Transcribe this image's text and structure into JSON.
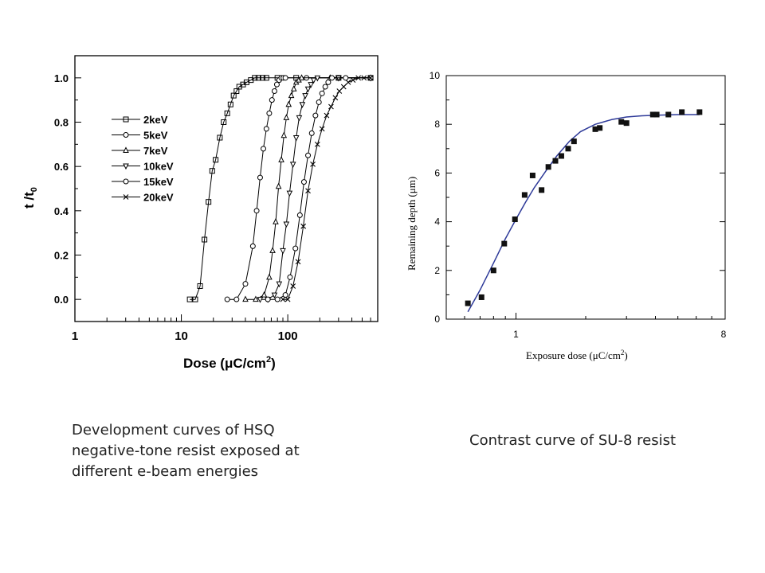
{
  "chart_data": [
    {
      "type": "scatter",
      "title": "",
      "xlabel": "Dose (μC/cm",
      "xlabel_sup": "2",
      "xlabel_close": ")",
      "ylabel": "t /t",
      "ylabel_sub": "0",
      "x_scale": "log",
      "xlim": [
        1,
        700
      ],
      "ylim": [
        -0.1,
        1.1
      ],
      "x_ticks": [
        {
          "value": 1,
          "label": "1"
        },
        {
          "value": 10,
          "label": "10"
        },
        {
          "value": 100,
          "label": "100"
        }
      ],
      "y_ticks": [
        {
          "value": 0.0,
          "label": "0.0"
        },
        {
          "value": 0.2,
          "label": "0.2"
        },
        {
          "value": 0.4,
          "label": "0.4"
        },
        {
          "value": 0.6,
          "label": "0.6"
        },
        {
          "value": 0.8,
          "label": "0.8"
        },
        {
          "value": 1.0,
          "label": "1.0"
        }
      ],
      "legend_position": "left",
      "series": [
        {
          "name": "2keV",
          "marker": "square",
          "x": [
            12,
            13.5,
            15,
            16.5,
            18,
            19.5,
            21,
            23,
            25,
            27,
            29,
            31,
            33,
            35,
            38,
            41,
            45,
            49,
            53,
            58,
            63,
            80,
            120,
            300,
            600
          ],
          "y": [
            0.0,
            0.0,
            0.06,
            0.27,
            0.44,
            0.58,
            0.63,
            0.73,
            0.8,
            0.84,
            0.88,
            0.92,
            0.94,
            0.96,
            0.97,
            0.98,
            0.99,
            1.0,
            1.0,
            1.0,
            1.0,
            1.0,
            1.0,
            1.0,
            1.0
          ]
        },
        {
          "name": "5keV",
          "marker": "circle",
          "x": [
            27,
            33,
            40,
            47,
            51,
            55,
            59,
            63,
            67,
            71,
            75,
            79,
            83,
            87,
            91,
            95,
            150,
            300,
            600
          ],
          "y": [
            0.0,
            0.0,
            0.07,
            0.24,
            0.4,
            0.55,
            0.68,
            0.77,
            0.84,
            0.9,
            0.94,
            0.97,
            0.99,
            1.0,
            1.0,
            1.0,
            1.0,
            1.0,
            1.0
          ]
        },
        {
          "name": "7keV",
          "marker": "triangle-up",
          "x": [
            40,
            50,
            60,
            67,
            72,
            77,
            82,
            87,
            92,
            97,
            102,
            108,
            114,
            120,
            127,
            135,
            250,
            600
          ],
          "y": [
            0.0,
            0.0,
            0.02,
            0.1,
            0.22,
            0.35,
            0.51,
            0.63,
            0.74,
            0.82,
            0.88,
            0.92,
            0.95,
            0.98,
            0.99,
            1.0,
            1.0,
            1.0
          ]
        },
        {
          "name": "10keV",
          "marker": "triangle-down",
          "x": [
            55,
            65,
            75,
            83,
            90,
            97,
            104,
            112,
            120,
            128,
            137,
            146,
            155,
            165,
            175,
            190,
            300,
            600
          ],
          "y": [
            0.0,
            0.0,
            0.02,
            0.07,
            0.22,
            0.34,
            0.48,
            0.61,
            0.73,
            0.82,
            0.88,
            0.92,
            0.95,
            0.97,
            0.99,
            1.0,
            1.0,
            1.0
          ]
        },
        {
          "name": "15keV",
          "marker": "circle",
          "x": [
            65,
            80,
            95,
            105,
            118,
            130,
            142,
            155,
            168,
            182,
            196,
            210,
            225,
            240,
            260,
            350,
            600
          ],
          "y": [
            0.0,
            0.0,
            0.02,
            0.1,
            0.23,
            0.38,
            0.53,
            0.65,
            0.75,
            0.83,
            0.89,
            0.93,
            0.96,
            0.98,
            1.0,
            1.0,
            1.0
          ]
        },
        {
          "name": "20keV",
          "marker": "x",
          "x": [
            90,
            100,
            112,
            125,
            140,
            155,
            172,
            190,
            210,
            232,
            255,
            280,
            305,
            335,
            370,
            410,
            460,
            520,
            600
          ],
          "y": [
            0.0,
            0.0,
            0.06,
            0.17,
            0.33,
            0.49,
            0.61,
            0.7,
            0.77,
            0.83,
            0.87,
            0.91,
            0.94,
            0.96,
            0.98,
            0.99,
            1.0,
            1.0,
            1.0
          ]
        }
      ]
    },
    {
      "type": "scatter",
      "title": "",
      "xlabel": "Exposure dose (μC/cm",
      "xlabel_sup": "2",
      "xlabel_close": ")",
      "ylabel": "Remaining depth (μm)",
      "x_scale": "log",
      "xlim": [
        0.5,
        8
      ],
      "ylim": [
        0,
        10
      ],
      "x_ticks": [
        {
          "value": 1,
          "label": "1"
        },
        {
          "value": 8,
          "label": "8"
        }
      ],
      "y_ticks": [
        {
          "value": 0,
          "label": "0"
        },
        {
          "value": 2,
          "label": "2"
        },
        {
          "value": 4,
          "label": "4"
        },
        {
          "value": 6,
          "label": "6"
        },
        {
          "value": 8,
          "label": "8"
        },
        {
          "value": 10,
          "label": "10"
        }
      ],
      "series": [
        {
          "name": "",
          "marker": "square",
          "color": "#111111",
          "x": [
            0.62,
            0.71,
            0.8,
            0.89,
            0.99,
            1.09,
            1.18,
            1.29,
            1.38,
            1.48,
            1.57,
            1.68,
            1.78,
            2.2,
            2.3,
            2.85,
            3.0,
            3.9,
            4.05,
            4.55,
            5.2,
            6.2
          ],
          "y": [
            0.65,
            0.9,
            2.0,
            3.1,
            4.1,
            5.1,
            5.9,
            5.3,
            6.25,
            6.5,
            6.7,
            7.0,
            7.3,
            7.8,
            7.85,
            8.1,
            8.05,
            8.4,
            8.4,
            8.4,
            8.5,
            8.5
          ]
        },
        {
          "name": "",
          "type": "line",
          "color": "#2e3a99",
          "x": [
            0.62,
            0.7,
            0.8,
            0.9,
            1.0,
            1.1,
            1.2,
            1.35,
            1.5,
            1.7,
            1.9,
            2.2,
            2.6,
            3.0,
            3.5,
            4.2,
            5.0,
            6.2
          ],
          "y": [
            0.3,
            1.2,
            2.3,
            3.3,
            4.1,
            4.8,
            5.4,
            6.1,
            6.7,
            7.3,
            7.7,
            8.0,
            8.2,
            8.3,
            8.35,
            8.38,
            8.4,
            8.4
          ]
        }
      ]
    }
  ],
  "captions": {
    "left": "Development curves of HSQ negative-tone resist exposed at different e-beam energies",
    "right": "Contrast curve of SU-8 resist"
  }
}
